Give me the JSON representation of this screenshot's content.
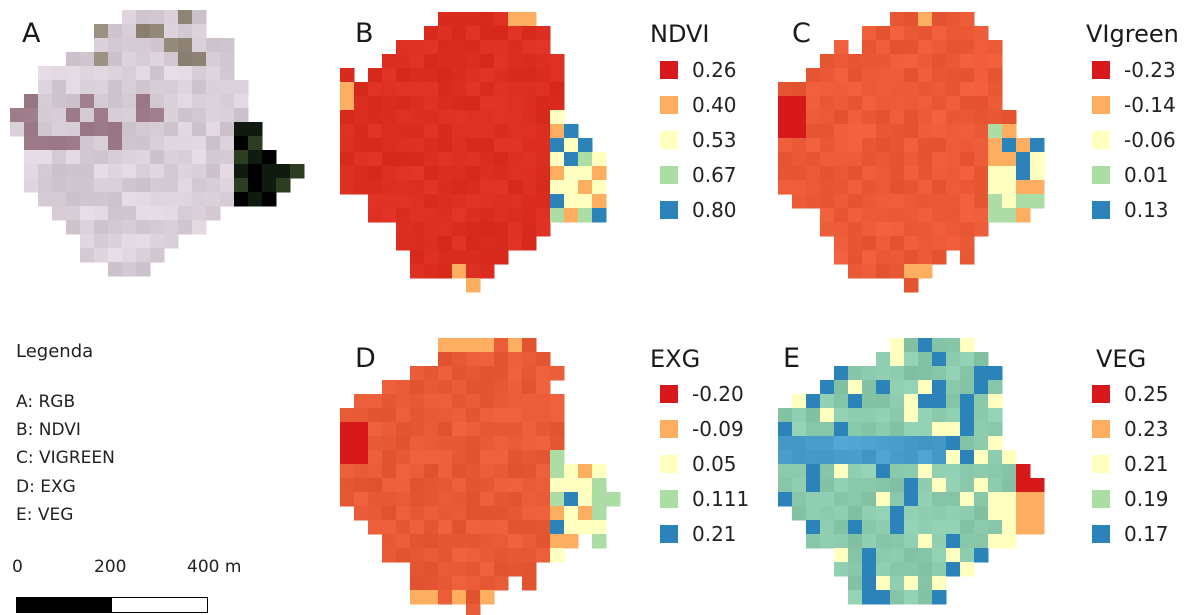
{
  "panels": [
    {
      "letter": "A",
      "layer": "RGB"
    },
    {
      "letter": "B",
      "layer": "NDVI"
    },
    {
      "letter": "C",
      "layer": "VIgreen"
    },
    {
      "letter": "D",
      "layer": "EXG"
    },
    {
      "letter": "E",
      "layer": "VEG"
    }
  ],
  "legends": {
    "ndvi": {
      "title": "NDVI",
      "classes": [
        {
          "value": "0.26",
          "color": "#d7191c"
        },
        {
          "value": "0.40",
          "color": "#fdae61"
        },
        {
          "value": "0.53",
          "color": "#ffffbf"
        },
        {
          "value": "0.67",
          "color": "#abdda4"
        },
        {
          "value": "0.80",
          "color": "#2b83ba"
        }
      ]
    },
    "vigreen": {
      "title": "VIgreen",
      "classes": [
        {
          "value": "-0.23",
          "color": "#d7191c"
        },
        {
          "value": "-0.14",
          "color": "#fdae61"
        },
        {
          "value": "-0.06",
          "color": "#ffffbf"
        },
        {
          "value": "0.01",
          "color": "#abdda4"
        },
        {
          "value": "0.13",
          "color": "#2b83ba"
        }
      ]
    },
    "exg": {
      "title": "EXG",
      "classes": [
        {
          "value": "-0.20",
          "color": "#d7191c"
        },
        {
          "value": "-0.09",
          "color": "#fdae61"
        },
        {
          "value": "0.05",
          "color": "#ffffbf"
        },
        {
          "value": "0.111",
          "color": "#abdda4"
        },
        {
          "value": "0.21",
          "color": "#2b83ba"
        }
      ]
    },
    "veg": {
      "title": "VEG",
      "classes": [
        {
          "value": "0.25",
          "color": "#d7191c"
        },
        {
          "value": "0.23",
          "color": "#fdae61"
        },
        {
          "value": "0.21",
          "color": "#ffffbf"
        },
        {
          "value": "0.19",
          "color": "#abdda4"
        },
        {
          "value": "0.17",
          "color": "#2b83ba"
        }
      ]
    }
  },
  "key": {
    "title": "Legenda",
    "items": [
      "A: RGB",
      "B: NDVI",
      "C: VIGREEN",
      "D: EXG",
      "E: VEG"
    ]
  },
  "scale_bar": {
    "labels": [
      "0",
      "200",
      "400 m"
    ],
    "colors": [
      "#000000",
      "#ffffff"
    ]
  },
  "map_colors": {
    "rgb_field": "#d8cfd8",
    "rgb_dark_corner": "#0f1a10",
    "ndvi_fill": "#dd2e22",
    "vigreen_fill": "#ea5a36",
    "exg_fill": "#e85a35",
    "veg_fill": "#8ccaae",
    "veg_band": "#4a9ccb"
  }
}
